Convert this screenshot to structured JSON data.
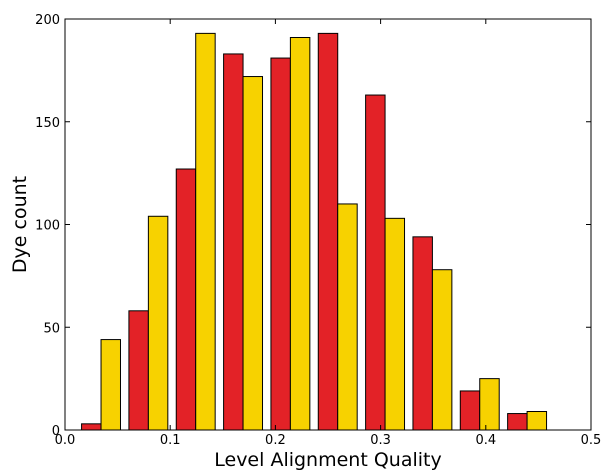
{
  "chart_data": {
    "type": "bar",
    "title": "",
    "xlabel": "Level Alignment Quality",
    "ylabel": "Dye count",
    "xlim": [
      0.0,
      0.5
    ],
    "ylim": [
      0,
      200
    ],
    "xticks": [
      "0.0",
      "0.1",
      "0.2",
      "0.3",
      "0.4",
      "0.5"
    ],
    "yticks": [
      "0",
      "50",
      "100",
      "150",
      "200"
    ],
    "grid": false,
    "legend": "none",
    "bar_width": 0.0185,
    "series": [
      {
        "color": "#e32227",
        "x": [
          0.025,
          0.07,
          0.115,
          0.16,
          0.205,
          0.25,
          0.295,
          0.34,
          0.385,
          0.43
        ],
        "values": [
          3,
          58,
          127,
          183,
          181,
          193,
          163,
          94,
          19,
          8
        ]
      },
      {
        "color": "#f7d200",
        "x": [
          0.0435,
          0.0885,
          0.1335,
          0.1785,
          0.2235,
          0.2685,
          0.3135,
          0.3585,
          0.4035,
          0.4485
        ],
        "values": [
          44,
          104,
          193,
          172,
          191,
          110,
          103,
          78,
          25,
          9
        ]
      }
    ]
  }
}
